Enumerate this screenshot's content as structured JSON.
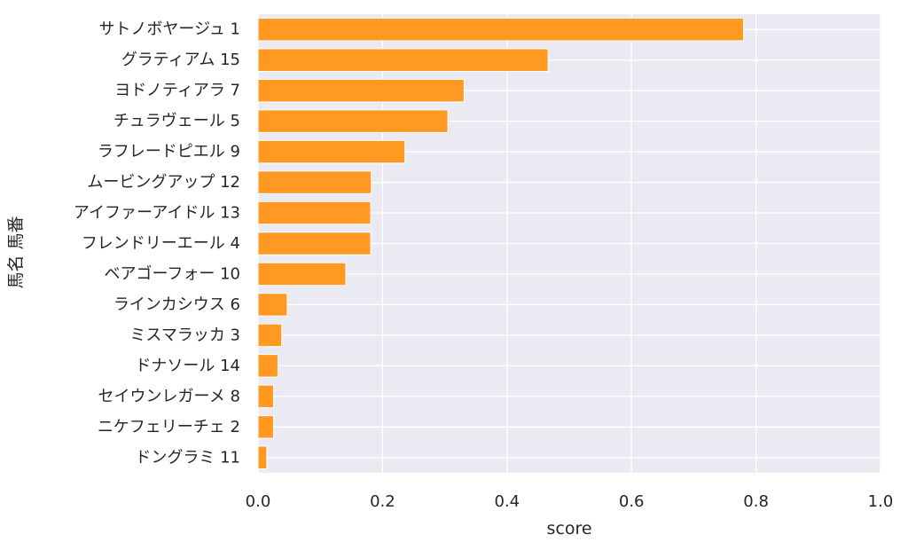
{
  "chart_data": {
    "type": "bar",
    "orientation": "horizontal",
    "categories": [
      "サトノボヤージュ 1",
      "グラティアム 15",
      "ヨドノティアラ 7",
      "チュラヴェール 5",
      "ラフレードピエル 9",
      "ムービングアップ 12",
      "アイファーアイドル 13",
      "フレンドリーエール 4",
      "ベアゴーフォー 10",
      "ラインカシウス 6",
      "ミスマラッカ 3",
      "ドナソール 14",
      "セイウンレガーメ 8",
      "ニケフェリーチェ 2",
      "ドングラミ 11"
    ],
    "values": [
      0.78,
      0.466,
      0.331,
      0.305,
      0.236,
      0.182,
      0.181,
      0.181,
      0.141,
      0.047,
      0.038,
      0.032,
      0.025,
      0.025,
      0.014
    ],
    "title": "",
    "xlabel": "score",
    "ylabel": "馬名 馬番",
    "xlim": [
      0,
      1.0
    ],
    "xticks": [
      "0.0",
      "0.2",
      "0.4",
      "0.6",
      "0.8",
      "1.0"
    ],
    "grid": true,
    "colors": {
      "bar": "#ff9922",
      "bar_edge": "#ffffff",
      "plot_background": "#eaeaf2",
      "grid": "#ffffff",
      "text": "#262626"
    }
  }
}
